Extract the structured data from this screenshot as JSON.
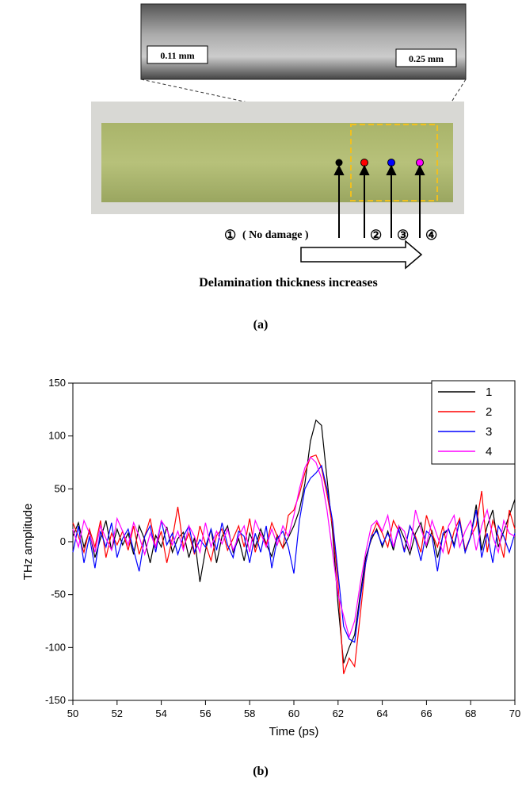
{
  "panel_a": {
    "scale_labels": [
      "0.11 mm",
      "0.25 mm"
    ],
    "point_1": "①",
    "point_1_note": "( No damage )",
    "point_2": "②",
    "point_3": "③",
    "point_4": "④",
    "caption": "Delamination thickness increases",
    "label": "(a)"
  },
  "chart_data": {
    "type": "line",
    "x_label": "Time (ps)",
    "y_label": "THz amplitude",
    "panel_label": "(b)",
    "xlim": [
      50,
      70
    ],
    "xticks": [
      50,
      52,
      54,
      56,
      58,
      60,
      62,
      64,
      66,
      68,
      70
    ],
    "ylim": [
      -150,
      150
    ],
    "yticks": [
      -150,
      -100,
      -50,
      0,
      50,
      100,
      150
    ],
    "legend": "top-right",
    "x": [
      50,
      50.25,
      50.5,
      50.75,
      51,
      51.25,
      51.5,
      51.75,
      52,
      52.25,
      52.5,
      52.75,
      53,
      53.25,
      53.5,
      53.75,
      54,
      54.25,
      54.5,
      54.75,
      55,
      55.25,
      55.5,
      55.75,
      56,
      56.25,
      56.5,
      56.75,
      57,
      57.25,
      57.5,
      57.75,
      58,
      58.25,
      58.5,
      58.75,
      59,
      59.25,
      59.5,
      59.75,
      60,
      60.25,
      60.5,
      60.75,
      61,
      61.25,
      61.5,
      61.75,
      62,
      62.25,
      62.5,
      62.75,
      63,
      63.25,
      63.5,
      63.75,
      64,
      64.25,
      64.5,
      64.75,
      65,
      65.25,
      65.5,
      65.75,
      66,
      66.25,
      66.5,
      66.75,
      67,
      67.25,
      67.5,
      67.75,
      68,
      68.25,
      68.5,
      68.75,
      69,
      69.25,
      69.5,
      69.75,
      70
    ],
    "series": [
      {
        "name": "1",
        "color": "#000000",
        "values": [
          5,
          18,
          -5,
          10,
          -15,
          3,
          20,
          -8,
          12,
          -3,
          8,
          -12,
          15,
          2,
          -20,
          6,
          -5,
          14,
          -10,
          3,
          9,
          -15,
          4,
          -38,
          -8,
          12,
          -20,
          5,
          15,
          -10,
          3,
          -18,
          8,
          -5,
          12,
          -2,
          -14,
          6,
          -6,
          4,
          15,
          30,
          55,
          95,
          115,
          110,
          60,
          10,
          -60,
          -115,
          -100,
          -88,
          -50,
          -15,
          2,
          12,
          -5,
          10,
          -8,
          15,
          3,
          -12,
          8,
          18,
          -5,
          10,
          -15,
          6,
          12,
          -3,
          20,
          -10,
          5,
          35,
          -8,
          15,
          30,
          -5,
          10,
          25,
          40
        ]
      },
      {
        "name": "2",
        "color": "#ff0000",
        "values": [
          18,
          5,
          -10,
          12,
          -5,
          20,
          -15,
          8,
          -3,
          10,
          -8,
          15,
          -12,
          5,
          22,
          -6,
          10,
          -20,
          3,
          33,
          -5,
          8,
          -12,
          15,
          -2,
          -18,
          6,
          12,
          -8,
          3,
          15,
          -5,
          22,
          -10,
          8,
          -3,
          18,
          5,
          -6,
          25,
          30,
          45,
          65,
          80,
          82,
          70,
          45,
          15,
          -40,
          -125,
          -110,
          -118,
          -70,
          -20,
          5,
          18,
          8,
          -5,
          20,
          10,
          -8,
          15,
          5,
          -10,
          25,
          8,
          -5,
          15,
          -12,
          10,
          22,
          -8,
          5,
          15,
          48,
          -10,
          20,
          5,
          -15,
          30,
          12
        ]
      },
      {
        "name": "3",
        "color": "#0000ff",
        "values": [
          -10,
          15,
          -20,
          5,
          -25,
          10,
          -5,
          18,
          -15,
          3,
          12,
          -8,
          -28,
          5,
          15,
          -10,
          20,
          -3,
          8,
          -12,
          5,
          15,
          -10,
          2,
          -5,
          12,
          -8,
          18,
          -3,
          -15,
          10,
          5,
          -20,
          8,
          -10,
          15,
          -25,
          3,
          10,
          -5,
          -30,
          20,
          50,
          60,
          65,
          72,
          50,
          20,
          -30,
          -80,
          -92,
          -95,
          -55,
          -20,
          5,
          10,
          -3,
          8,
          -5,
          12,
          -10,
          15,
          3,
          -18,
          10,
          5,
          -28,
          8,
          12,
          -5,
          20,
          -10,
          5,
          30,
          -15,
          8,
          -20,
          15,
          5,
          -10,
          8
        ]
      },
      {
        "name": "4",
        "color": "#ff00ff",
        "values": [
          12,
          -5,
          20,
          8,
          -10,
          15,
          3,
          -8,
          22,
          10,
          -3,
          18,
          5,
          -12,
          8,
          -5,
          20,
          12,
          -3,
          10,
          -8,
          15,
          5,
          -10,
          18,
          -5,
          10,
          -2,
          12,
          -8,
          5,
          15,
          -10,
          20,
          8,
          -5,
          12,
          -3,
          15,
          5,
          25,
          50,
          70,
          80,
          75,
          60,
          30,
          -10,
          -50,
          -70,
          -90,
          -75,
          -40,
          -10,
          15,
          20,
          10,
          25,
          -5,
          15,
          10,
          -8,
          30,
          12,
          -3,
          20,
          5,
          -10,
          15,
          25,
          -5,
          10,
          20,
          -8,
          15,
          30,
          5,
          -10,
          20,
          8,
          5
        ]
      }
    ]
  }
}
